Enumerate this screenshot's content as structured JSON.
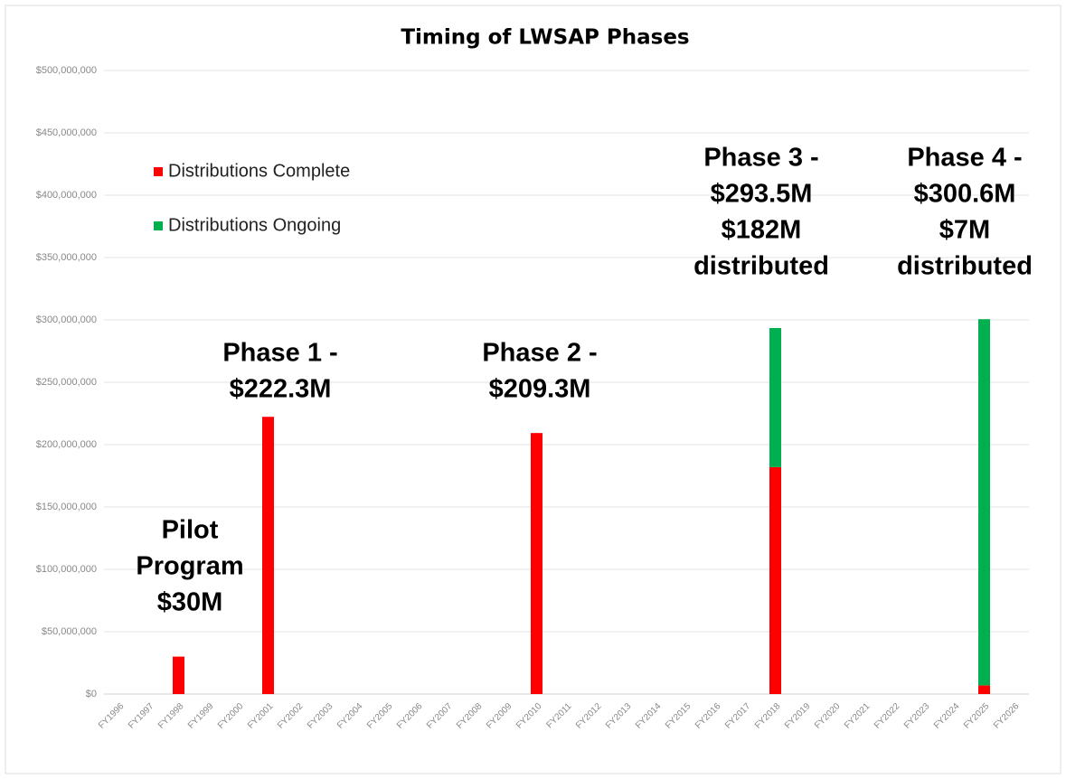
{
  "chart_data": {
    "type": "bar",
    "stacked": true,
    "title": "Timing of LWSAP Phases",
    "categories": [
      "FY1996",
      "FY1997",
      "FY1998",
      "FY1999",
      "FY2000",
      "FY2001",
      "FY2002",
      "FY2003",
      "FY2004",
      "FY2005",
      "FY2006",
      "FY2007",
      "FY2008",
      "FY2009",
      "FY2010",
      "FY2011",
      "FY2012",
      "FY2013",
      "FY2014",
      "FY2015",
      "FY2016",
      "FY2017",
      "FY2018",
      "FY2019",
      "FY2020",
      "FY2021",
      "FY2022",
      "FY2023",
      "FY2024",
      "FY2025",
      "FY2026"
    ],
    "series": [
      {
        "name": "Distributions Complete",
        "color": "#ff0000",
        "values": [
          null,
          null,
          30000000,
          null,
          null,
          222300000,
          null,
          null,
          null,
          null,
          null,
          null,
          null,
          null,
          209300000,
          null,
          null,
          null,
          null,
          null,
          null,
          null,
          182000000,
          null,
          null,
          null,
          null,
          null,
          null,
          7000000,
          null
        ]
      },
      {
        "name": "Distributions Ongoing",
        "color": "#00b050",
        "values": [
          null,
          null,
          null,
          null,
          null,
          null,
          null,
          null,
          null,
          null,
          null,
          null,
          null,
          null,
          null,
          null,
          null,
          null,
          null,
          null,
          null,
          null,
          111500000,
          null,
          null,
          null,
          null,
          null,
          null,
          293600000,
          null
        ]
      }
    ],
    "ylim": [
      0,
      500000000
    ],
    "yticks": [
      {
        "value": 0,
        "label": "$0"
      },
      {
        "value": 50000000,
        "label": "$50,000,000"
      },
      {
        "value": 100000000,
        "label": "$100,000,000"
      },
      {
        "value": 150000000,
        "label": "$150,000,000"
      },
      {
        "value": 200000000,
        "label": "$200,000,000"
      },
      {
        "value": 250000000,
        "label": "$250,000,000"
      },
      {
        "value": 300000000,
        "label": "$300,000,000"
      },
      {
        "value": 350000000,
        "label": "$350,000,000"
      },
      {
        "value": 400000000,
        "label": "$400,000,000"
      },
      {
        "value": 450000000,
        "label": "$450,000,000"
      },
      {
        "value": 500000000,
        "label": "$500,000,000"
      }
    ],
    "grid": true,
    "legend": "upper left",
    "annotations": [
      [
        "Pilot",
        "Program",
        "$30M"
      ],
      [
        "Phase 1 -",
        "$222.3M"
      ],
      [
        "Phase 2 -",
        "$209.3M"
      ],
      [
        "Phase 3 -",
        "$293.5M",
        "$182M",
        "distributed"
      ],
      [
        "Phase 4 -",
        "$300.6M",
        "$7M",
        "distributed"
      ]
    ]
  }
}
